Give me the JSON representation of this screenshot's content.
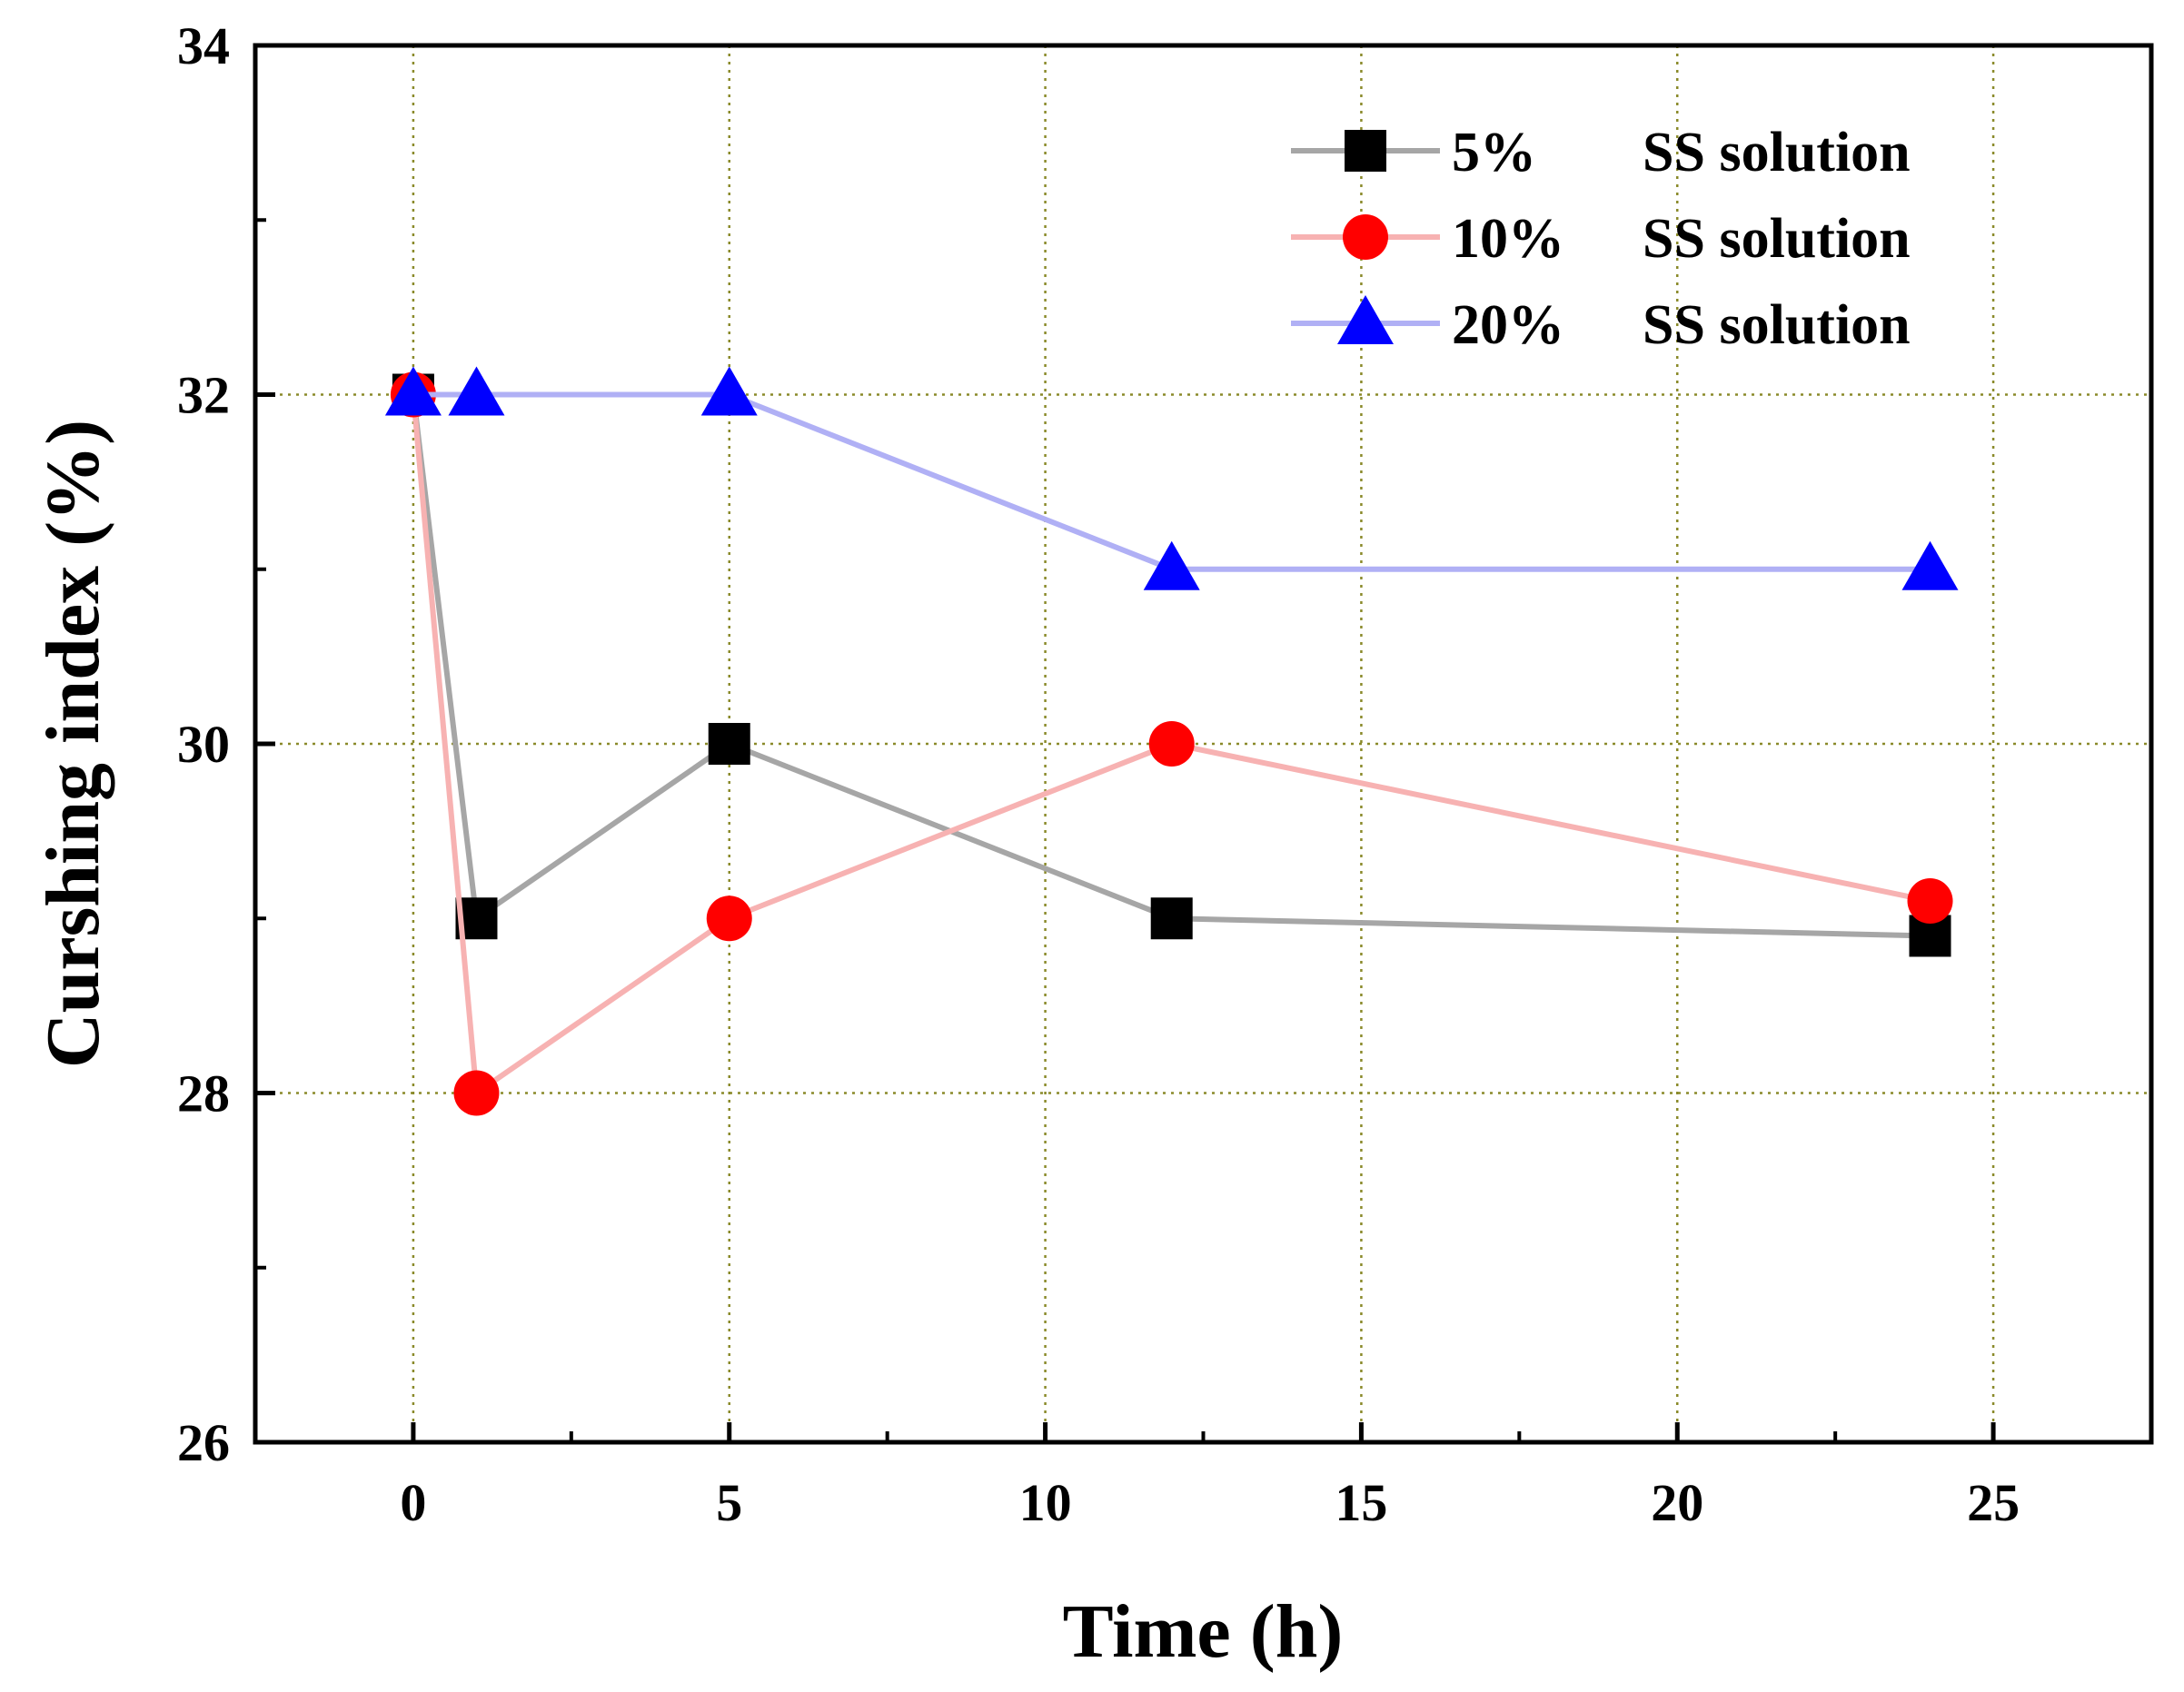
{
  "chart_data": {
    "type": "line",
    "title": "",
    "xlabel": "Time (h)",
    "ylabel": "Curshing index (%)",
    "xlim": [
      -2.5,
      27.5
    ],
    "ylim": [
      26,
      34
    ],
    "x_ticks": [
      0,
      5,
      10,
      15,
      20,
      25
    ],
    "x_tick_labels": [
      "0",
      "5",
      "10",
      "15",
      "20",
      "25"
    ],
    "y_ticks": [
      26,
      28,
      30,
      32,
      34
    ],
    "y_tick_labels": [
      "26",
      "28",
      "30",
      "32",
      "34"
    ],
    "grid": true,
    "legend_position": "top-right",
    "series": [
      {
        "name": "5%",
        "suffix": "SS solution",
        "marker": "square",
        "line_color": "#a6a6a6",
        "marker_color": "#000000",
        "x": [
          0,
          1,
          5,
          12,
          24
        ],
        "y": [
          32.0,
          29.0,
          30.0,
          29.0,
          28.9
        ]
      },
      {
        "name": "10%",
        "suffix": "SS solution",
        "marker": "circle",
        "line_color": "#f7b2b2",
        "marker_color": "#ff0000",
        "x": [
          0,
          1,
          5,
          12,
          24
        ],
        "y": [
          32.0,
          28.0,
          29.0,
          30.0,
          29.1
        ]
      },
      {
        "name": "20%",
        "suffix": "SS solution",
        "marker": "triangle",
        "line_color": "#b0b0f5",
        "marker_color": "#0000ff",
        "x": [
          0,
          1,
          5,
          12,
          24
        ],
        "y": [
          32.0,
          32.0,
          32.0,
          31.0,
          31.0
        ]
      }
    ]
  }
}
